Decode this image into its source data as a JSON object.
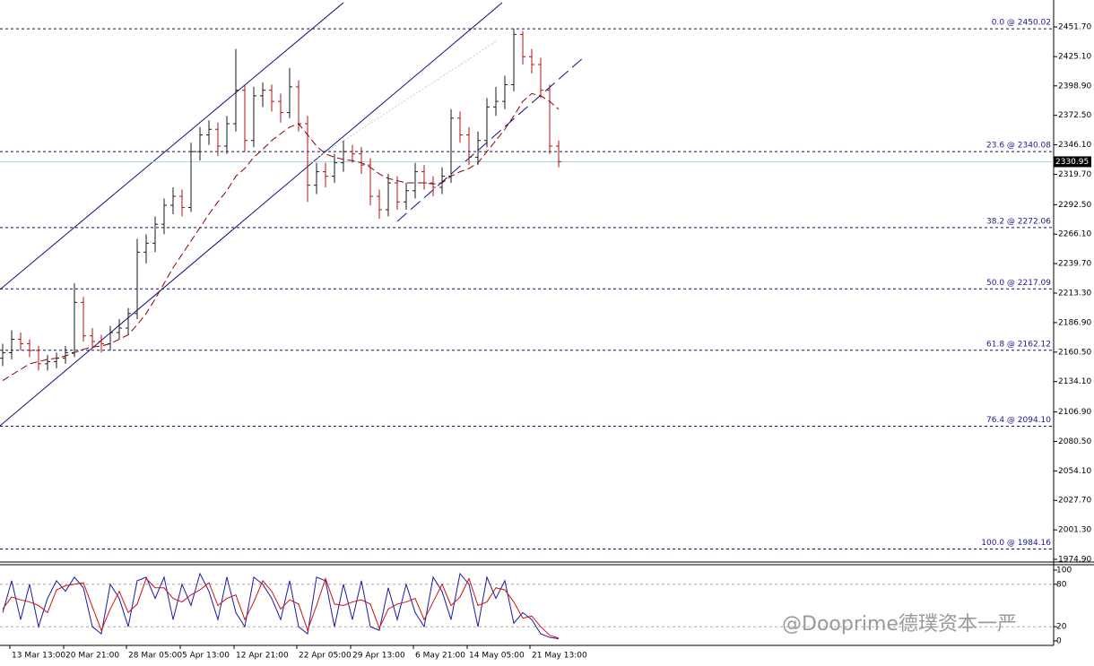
{
  "chart_data": {
    "type": "ohlc",
    "ylim": [
      1972.5,
      2475.8
    ],
    "yticks": [
      {
        "value": 2451.7,
        "label": "2451.70"
      },
      {
        "value": 2425.1,
        "label": "2425.10"
      },
      {
        "value": 2398.9,
        "label": "2398.90"
      },
      {
        "value": 2372.5,
        "label": "2372.50"
      },
      {
        "value": 2346.1,
        "label": "2346.10"
      },
      {
        "value": 2319.7,
        "label": "2319.70"
      },
      {
        "value": 2292.5,
        "label": "2292.50"
      },
      {
        "value": 2266.1,
        "label": "2266.10"
      },
      {
        "value": 2239.7,
        "label": "2239.70"
      },
      {
        "value": 2213.3,
        "label": "2213.30"
      },
      {
        "value": 2186.9,
        "label": "2186.90"
      },
      {
        "value": 2160.5,
        "label": "2160.50"
      },
      {
        "value": 2134.1,
        "label": "2134.10"
      },
      {
        "value": 2106.9,
        "label": "2106.90"
      },
      {
        "value": 2080.5,
        "label": "2080.50"
      },
      {
        "value": 2054.1,
        "label": "2054.10"
      },
      {
        "value": 2027.7,
        "label": "2027.70"
      },
      {
        "value": 2001.3,
        "label": "2001.30"
      },
      {
        "value": 1974.9,
        "label": "1974.90"
      }
    ],
    "up_color": "#1a1a1a",
    "down_color": "#b01010",
    "ma_color": "#8b0000",
    "categories": [
      null,
      "13 Mar 13:00",
      null,
      null,
      null,
      null,
      null,
      "20 Mar 21:00",
      null,
      null,
      null,
      null,
      null,
      null,
      "28 Mar 05:00",
      null,
      null,
      null,
      null,
      null,
      "5 Apr 13:00",
      null,
      null,
      null,
      null,
      null,
      "12 Apr 21:00",
      null,
      null,
      null,
      null,
      null,
      null,
      "22 Apr 05:00",
      null,
      null,
      null,
      null,
      null,
      "29 Apr 13:00",
      null,
      null,
      null,
      null,
      null,
      null,
      "6 May 21:00",
      null,
      null,
      null,
      null,
      null,
      "14 May 05:00",
      null,
      null,
      null,
      null,
      null,
      null,
      "21 May 13:00",
      null,
      null,
      null
    ],
    "bars": [
      [
        2155,
        2168,
        2148,
        2160
      ],
      [
        2160,
        2180,
        2154,
        2172
      ],
      [
        2172,
        2178,
        2162,
        2168
      ],
      [
        2168,
        2172,
        2156,
        2162
      ],
      [
        2162,
        2166,
        2144,
        2150
      ],
      [
        2150,
        2158,
        2144,
        2152
      ],
      [
        2152,
        2160,
        2146,
        2155
      ],
      [
        2155,
        2166,
        2150,
        2160
      ],
      [
        2160,
        2222,
        2156,
        2205
      ],
      [
        2205,
        2210,
        2170,
        2175
      ],
      [
        2175,
        2182,
        2164,
        2170
      ],
      [
        2170,
        2176,
        2160,
        2168
      ],
      [
        2168,
        2184,
        2162,
        2178
      ],
      [
        2178,
        2190,
        2172,
        2182
      ],
      [
        2182,
        2200,
        2176,
        2195
      ],
      [
        2195,
        2262,
        2190,
        2250
      ],
      [
        2250,
        2266,
        2240,
        2258
      ],
      [
        2258,
        2282,
        2250,
        2275
      ],
      [
        2275,
        2298,
        2266,
        2292
      ],
      [
        2292,
        2308,
        2284,
        2300
      ],
      [
        2300,
        2306,
        2282,
        2290
      ],
      [
        2290,
        2348,
        2286,
        2340
      ],
      [
        2340,
        2362,
        2332,
        2355
      ],
      [
        2355,
        2368,
        2346,
        2360
      ],
      [
        2360,
        2366,
        2336,
        2345
      ],
      [
        2345,
        2372,
        2338,
        2365
      ],
      [
        2365,
        2432,
        2358,
        2395
      ],
      [
        2395,
        2400,
        2340,
        2350
      ],
      [
        2350,
        2398,
        2344,
        2390
      ],
      [
        2390,
        2402,
        2380,
        2395
      ],
      [
        2395,
        2400,
        2376,
        2385
      ],
      [
        2385,
        2392,
        2366,
        2375
      ],
      [
        2375,
        2415,
        2370,
        2398
      ],
      [
        2398,
        2404,
        2358,
        2365
      ],
      [
        2365,
        2372,
        2295,
        2310
      ],
      [
        2310,
        2330,
        2302,
        2322
      ],
      [
        2322,
        2330,
        2308,
        2318
      ],
      [
        2318,
        2338,
        2312,
        2330
      ],
      [
        2330,
        2350,
        2322,
        2340
      ],
      [
        2340,
        2346,
        2330,
        2338
      ],
      [
        2338,
        2344,
        2320,
        2328
      ],
      [
        2328,
        2334,
        2292,
        2300
      ],
      [
        2300,
        2306,
        2280,
        2288
      ],
      [
        2288,
        2320,
        2282,
        2312
      ],
      [
        2312,
        2318,
        2288,
        2295
      ],
      [
        2295,
        2312,
        2288,
        2305
      ],
      [
        2305,
        2330,
        2298,
        2322
      ],
      [
        2322,
        2328,
        2306,
        2312
      ],
      [
        2312,
        2318,
        2300,
        2308
      ],
      [
        2308,
        2326,
        2302,
        2318
      ],
      [
        2318,
        2378,
        2312,
        2370
      ],
      [
        2370,
        2376,
        2348,
        2355
      ],
      [
        2355,
        2362,
        2328,
        2335
      ],
      [
        2335,
        2358,
        2328,
        2350
      ],
      [
        2350,
        2388,
        2344,
        2380
      ],
      [
        2380,
        2398,
        2372,
        2385
      ],
      [
        2385,
        2408,
        2378,
        2400
      ],
      [
        2400,
        2450,
        2394,
        2445
      ],
      [
        2445,
        2448,
        2418,
        2425
      ],
      [
        2425,
        2432,
        2410,
        2418
      ],
      [
        2418,
        2424,
        2388,
        2395
      ],
      [
        2395,
        2400,
        2338,
        2345
      ],
      [
        2345,
        2350,
        2326,
        2331
      ]
    ],
    "ma": [
      2135,
      2140,
      2145,
      2150,
      2152,
      2154,
      2155,
      2157,
      2160,
      2163,
      2165,
      2166,
      2168,
      2172,
      2176,
      2185,
      2195,
      2208,
      2222,
      2236,
      2248,
      2260,
      2272,
      2284,
      2295,
      2305,
      2318,
      2325,
      2335,
      2342,
      2350,
      2356,
      2362,
      2365,
      2355,
      2345,
      2338,
      2335,
      2333,
      2332,
      2330,
      2326,
      2320,
      2316,
      2314,
      2312,
      2312,
      2312,
      2311,
      2312,
      2318,
      2322,
      2325,
      2330,
      2340,
      2350,
      2360,
      2372,
      2385,
      2392,
      2390,
      2385,
      2378
    ],
    "fib_levels": [
      {
        "value": 2450.02,
        "label": "0.0 @ 2450.02"
      },
      {
        "value": 2340.08,
        "label": "23.6 @ 2340.08"
      },
      {
        "value": 2272.06,
        "label": "38.2 @ 2272.06"
      },
      {
        "value": 2217.09,
        "label": "50.0 @ 2217.09"
      },
      {
        "value": 2162.12,
        "label": "61.8 @ 2162.12"
      },
      {
        "value": 2094.1,
        "label": "76.4 @ 2094.10"
      },
      {
        "value": 1984.16,
        "label": "100.0 @ 1984.16"
      }
    ],
    "price": {
      "value": 2330.95,
      "label": "2330.95"
    },
    "stochastic": {
      "ylim": [
        0,
        100
      ],
      "yticks": [
        100,
        80,
        20,
        0
      ],
      "levels": [
        80,
        20
      ],
      "series": [
        {
          "color": "#1a1aa0",
          "values": [
            40,
            85,
            30,
            80,
            20,
            60,
            85,
            70,
            90,
            75,
            20,
            10,
            80,
            60,
            20,
            85,
            90,
            60,
            90,
            30,
            80,
            50,
            95,
            70,
            30,
            90,
            40,
            20,
            90,
            80,
            60,
            30,
            85,
            20,
            10,
            90,
            85,
            20,
            80,
            30,
            85,
            20,
            15,
            75,
            30,
            80,
            40,
            20,
            90,
            70,
            30,
            95,
            80,
            20,
            90,
            60,
            85,
            25,
            40,
            30,
            10,
            5,
            3
          ]
        },
        {
          "color": "#d01010",
          "values": [
            45,
            62,
            58,
            55,
            50,
            40,
            72,
            78,
            80,
            82,
            48,
            15,
            45,
            70,
            40,
            52,
            88,
            75,
            75,
            60,
            55,
            65,
            72,
            82,
            50,
            60,
            65,
            30,
            55,
            85,
            70,
            45,
            58,
            52,
            15,
            50,
            88,
            52,
            50,
            55,
            58,
            52,
            18,
            45,
            52,
            55,
            60,
            30,
            55,
            80,
            50,
            62,
            88,
            50,
            55,
            75,
            72,
            55,
            32,
            35,
            20,
            8,
            4
          ]
        }
      ]
    },
    "watermark": "@Dooprime德璞资本一严"
  }
}
